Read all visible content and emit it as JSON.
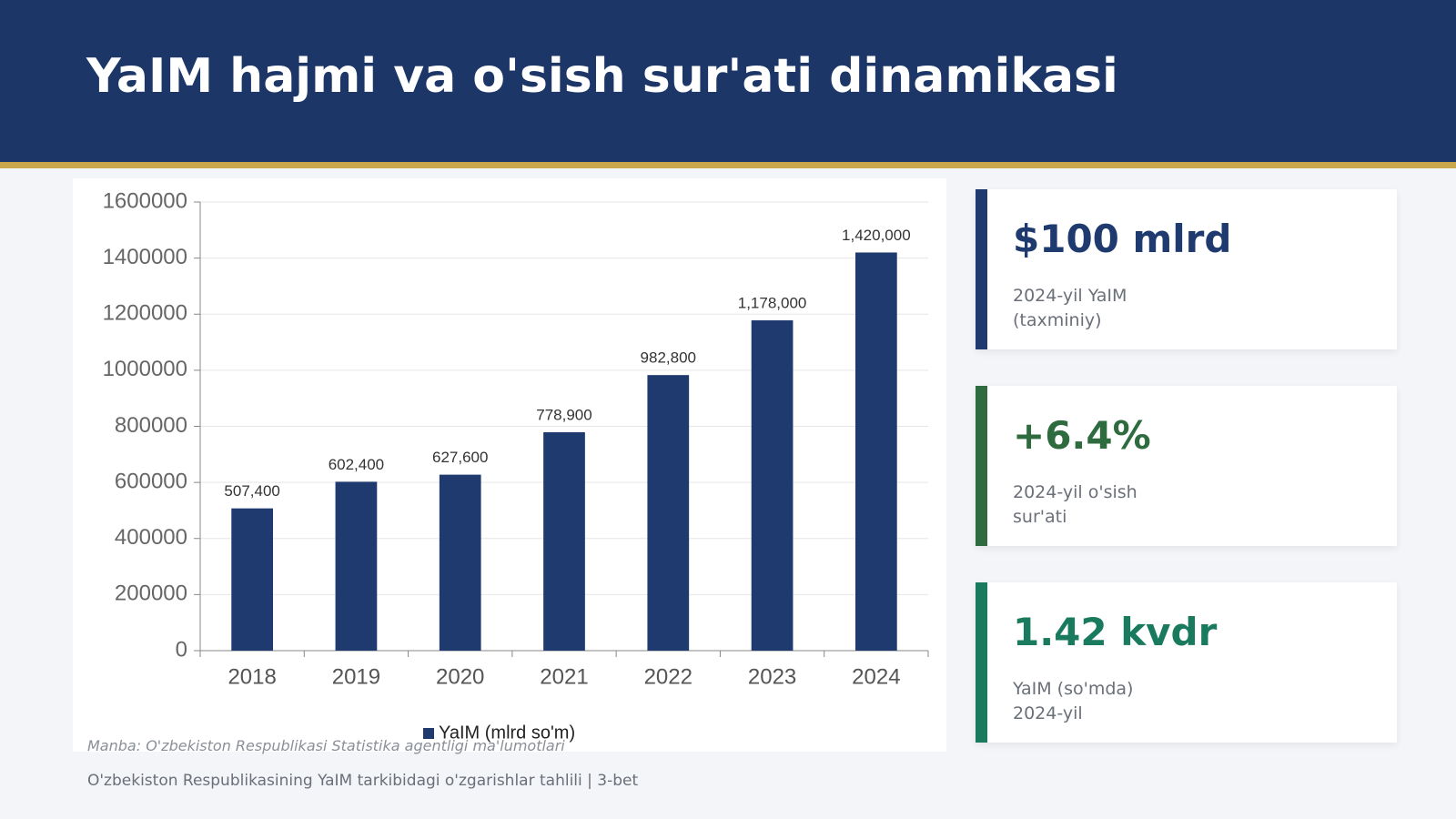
{
  "header": {
    "title": "YaIM hajmi va o'sish sur'ati dinamikasi"
  },
  "chart_data": {
    "type": "bar",
    "categories": [
      "2018",
      "2019",
      "2020",
      "2021",
      "2022",
      "2023",
      "2024"
    ],
    "series": [
      {
        "name": "YaIM (mlrd so'm)",
        "color": "#1f3a6e",
        "values": [
          507400,
          602400,
          627600,
          778900,
          982800,
          1178000,
          1420000
        ],
        "value_labels": [
          "507,400",
          "602,400",
          "627,600",
          "778,900",
          "982,800",
          "1,178,000",
          "1,420,000"
        ]
      }
    ],
    "ylim": [
      0,
      1600000
    ],
    "yticks": [
      0,
      200000,
      400000,
      600000,
      800000,
      1000000,
      1200000,
      1400000,
      1600000
    ],
    "grid": true,
    "legend": "bottom"
  },
  "kpis": [
    {
      "value": "$100 mlrd",
      "label": [
        "2024-yil YaIM",
        "(taxminiy)"
      ],
      "color": "#1f3a6e"
    },
    {
      "value": "+6.4%",
      "label": [
        "2024-yil o'sish",
        "sur'ati"
      ],
      "color": "#2e6b3f"
    },
    {
      "value": "1.42 kvdr",
      "label": [
        "YaIM (so'mda)",
        "2024-yil"
      ],
      "color": "#1a7a5e"
    }
  ],
  "footer": {
    "source": "Manba: O'zbekiston Respublikasi Statistika agentligi ma'lumotlari",
    "page": "O'zbekiston Respublikasining YaIM tarkibidagi o'zgarishlar tahlili | 3-bet"
  }
}
